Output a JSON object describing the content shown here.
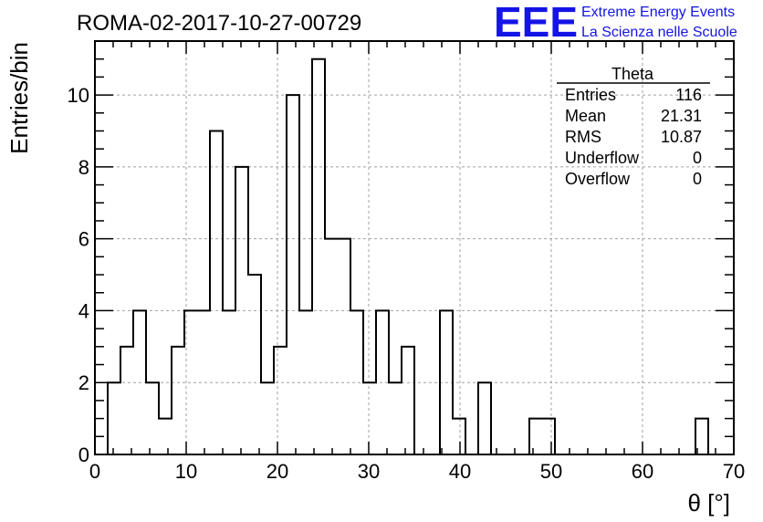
{
  "chart_data": {
    "type": "bar",
    "title": "ROMA-02-2017-10-27-00729",
    "xlabel": "θ [°]",
    "ylabel": "Entries/bin",
    "xlim": [
      0,
      70
    ],
    "ylim": [
      0,
      11.5
    ],
    "grid": true,
    "x_ticks": [
      0,
      10,
      20,
      30,
      40,
      50,
      60,
      70
    ],
    "y_ticks": [
      0,
      2,
      4,
      6,
      8,
      10
    ],
    "bin_width": 1.4,
    "bin_low_edges": [
      1.4,
      2.8,
      4.2,
      5.6,
      7.0,
      8.4,
      9.8,
      11.2,
      12.6,
      14.0,
      15.4,
      16.8,
      18.2,
      19.6,
      21.0,
      22.4,
      23.8,
      25.2,
      26.6,
      28.0,
      29.4,
      30.8,
      32.2,
      33.6,
      35.0,
      36.4,
      37.8,
      39.2,
      40.6,
      42.0,
      43.4,
      44.8,
      46.2,
      47.6,
      49.0,
      50.4,
      51.8,
      53.2,
      54.6,
      56.0,
      57.4,
      58.8,
      60.2,
      61.6,
      63.0,
      64.4,
      65.8,
      67.2
    ],
    "counts": [
      2,
      3,
      4,
      2,
      1,
      3,
      4,
      4,
      9,
      4,
      8,
      5,
      2,
      3,
      10,
      4,
      11,
      6,
      6,
      4,
      2,
      4,
      2,
      3,
      0,
      0,
      4,
      1,
      0,
      2,
      0,
      0,
      0,
      1,
      1,
      0,
      0,
      0,
      0,
      0,
      0,
      0,
      0,
      0,
      0,
      0,
      1,
      0
    ]
  },
  "stats_box": {
    "name": "Theta",
    "rows": [
      {
        "label": "Entries",
        "value": "116"
      },
      {
        "label": "Mean",
        "value": "21.31"
      },
      {
        "label": "RMS",
        "value": "10.87"
      },
      {
        "label": "Underflow",
        "value": "0"
      },
      {
        "label": "Overflow",
        "value": "0"
      }
    ]
  },
  "logo": {
    "mark": "EEE",
    "line1": "Extreme Energy Events",
    "line2": "La Scienza nelle Scuole",
    "color": "#1414e6"
  }
}
